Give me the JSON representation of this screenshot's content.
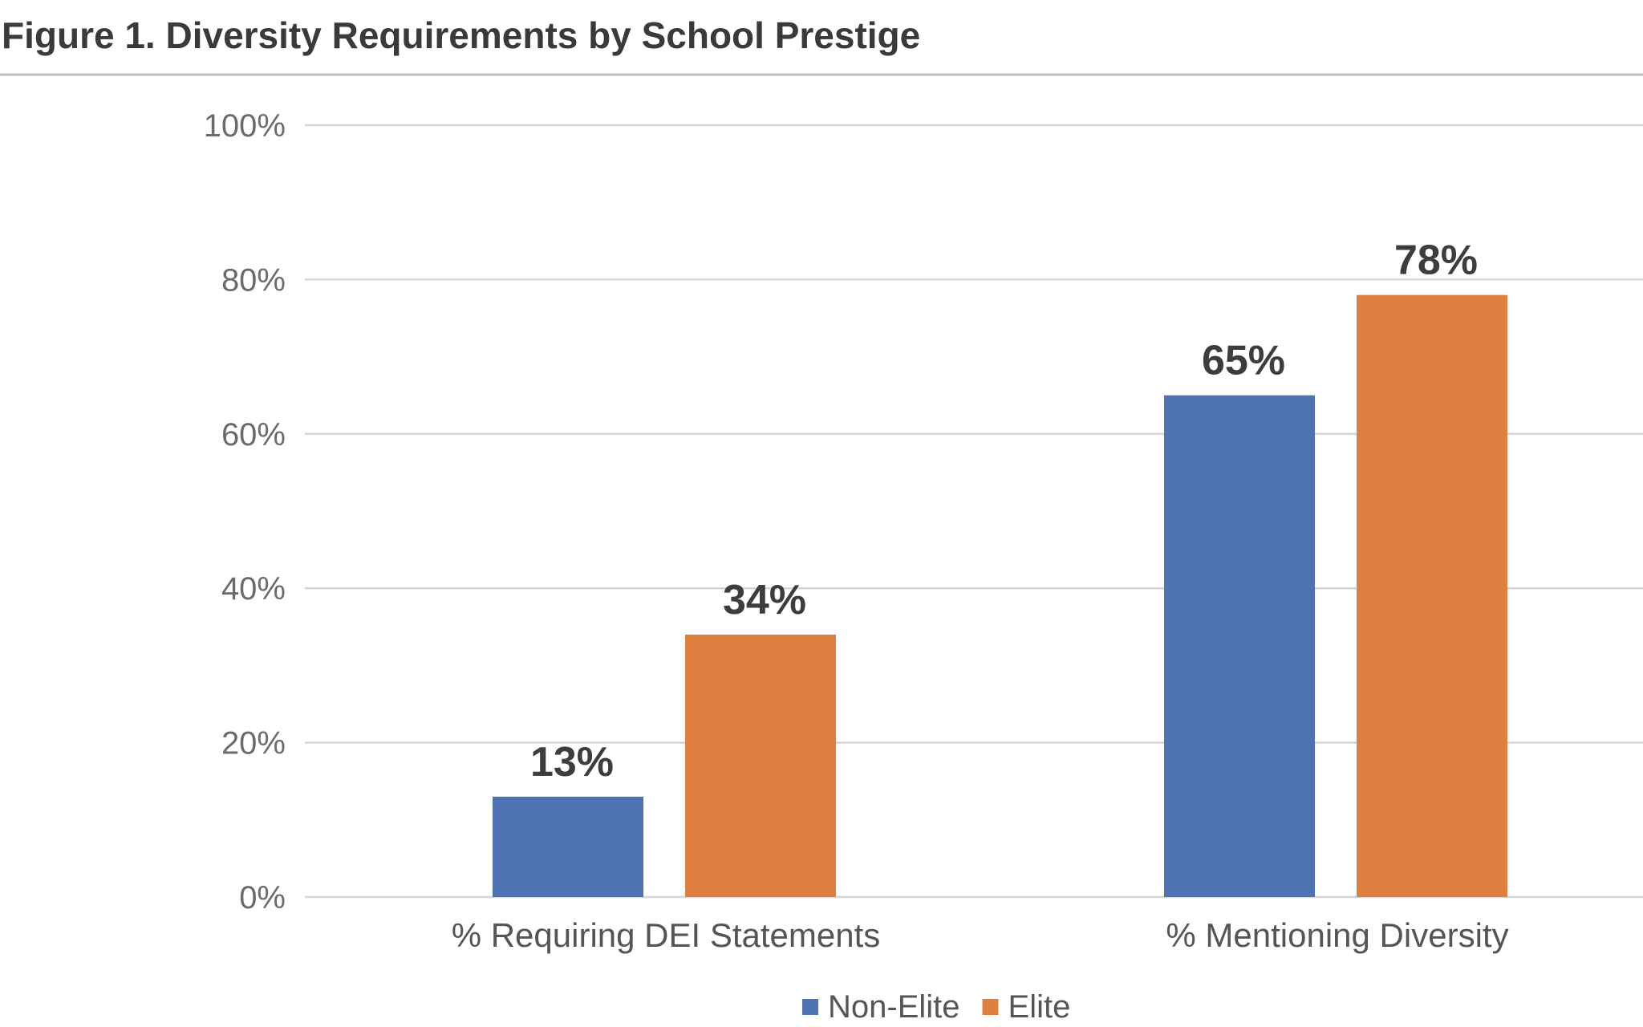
{
  "chart_data": {
    "type": "bar",
    "title": "Figure 1. Diversity Requirements by School Prestige",
    "xlabel": "",
    "ylabel": "",
    "categories": [
      "% Requiring DEI Statements",
      "% Mentioning Diversity"
    ],
    "series": [
      {
        "name": "Non-Elite",
        "color": "#4f72b3",
        "values": [
          13,
          65
        ]
      },
      {
        "name": "Elite",
        "color": "#e08040",
        "values": [
          34,
          78
        ]
      }
    ],
    "data_labels": [
      [
        "13%",
        "34%"
      ],
      [
        "65%",
        "78%"
      ]
    ],
    "ylim": [
      0,
      100
    ],
    "yticks": [
      0,
      20,
      40,
      60,
      80,
      100
    ],
    "ytick_labels": [
      "0%",
      "20%",
      "40%",
      "60%",
      "80%",
      "100%"
    ],
    "grid": true,
    "legend_position": "bottom-center"
  }
}
